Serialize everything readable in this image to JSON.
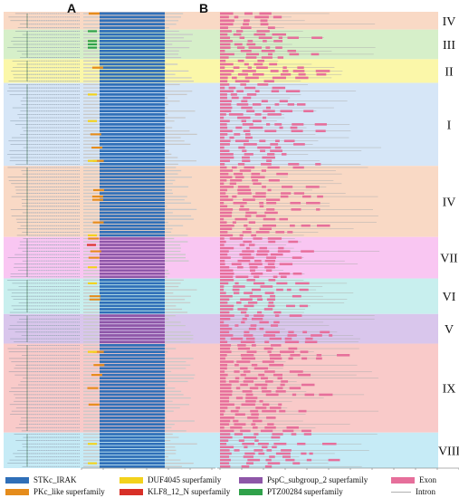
{
  "panels": {
    "a": "A",
    "b": "B"
  },
  "clades": [
    {
      "label": "IV",
      "color": "#f9d9c5",
      "rows": 3
    },
    {
      "label": "III",
      "color": "#d6efc9",
      "rows": 5
    },
    {
      "label": "II",
      "color": "#fbf7a9",
      "rows": 4
    },
    {
      "label": "I",
      "color": "#d6e6f7",
      "rows": 14
    },
    {
      "label": "IV",
      "color": "#f9d9c5",
      "rows": 12
    },
    {
      "label": "VII",
      "color": "#f9c6f2",
      "rows": 7
    },
    {
      "label": "VI",
      "color": "#c8efee",
      "rows": 6
    },
    {
      "label": "V",
      "color": "#d9c6ec",
      "rows": 5
    },
    {
      "label": "IX",
      "color": "#f9cac9",
      "rows": 15
    },
    {
      "label": "VIII",
      "color": "#c6ebf6",
      "rows": 6
    }
  ],
  "legend": [
    {
      "label": "STKc_IRAK",
      "color": "#2f6fb8",
      "kind": "box"
    },
    {
      "label": "PKc_like superfamily",
      "color": "#e58c1c",
      "kind": "box"
    },
    {
      "label": "DUF4045 superfamily",
      "color": "#f3d21c",
      "kind": "box"
    },
    {
      "label": "KLF8_12_N superfamily",
      "color": "#d82f27",
      "kind": "box"
    },
    {
      "label": "PspC_subgroup_2 superfamily",
      "color": "#8e56a8",
      "kind": "box"
    },
    {
      "label": "PTZ00284 superfamily",
      "color": "#2fa14a",
      "kind": "box"
    },
    {
      "label": "Exon",
      "color": "#e66f9b",
      "kind": "box"
    },
    {
      "label": "Intron",
      "color": "#b0b0b0",
      "kind": "line"
    }
  ]
}
